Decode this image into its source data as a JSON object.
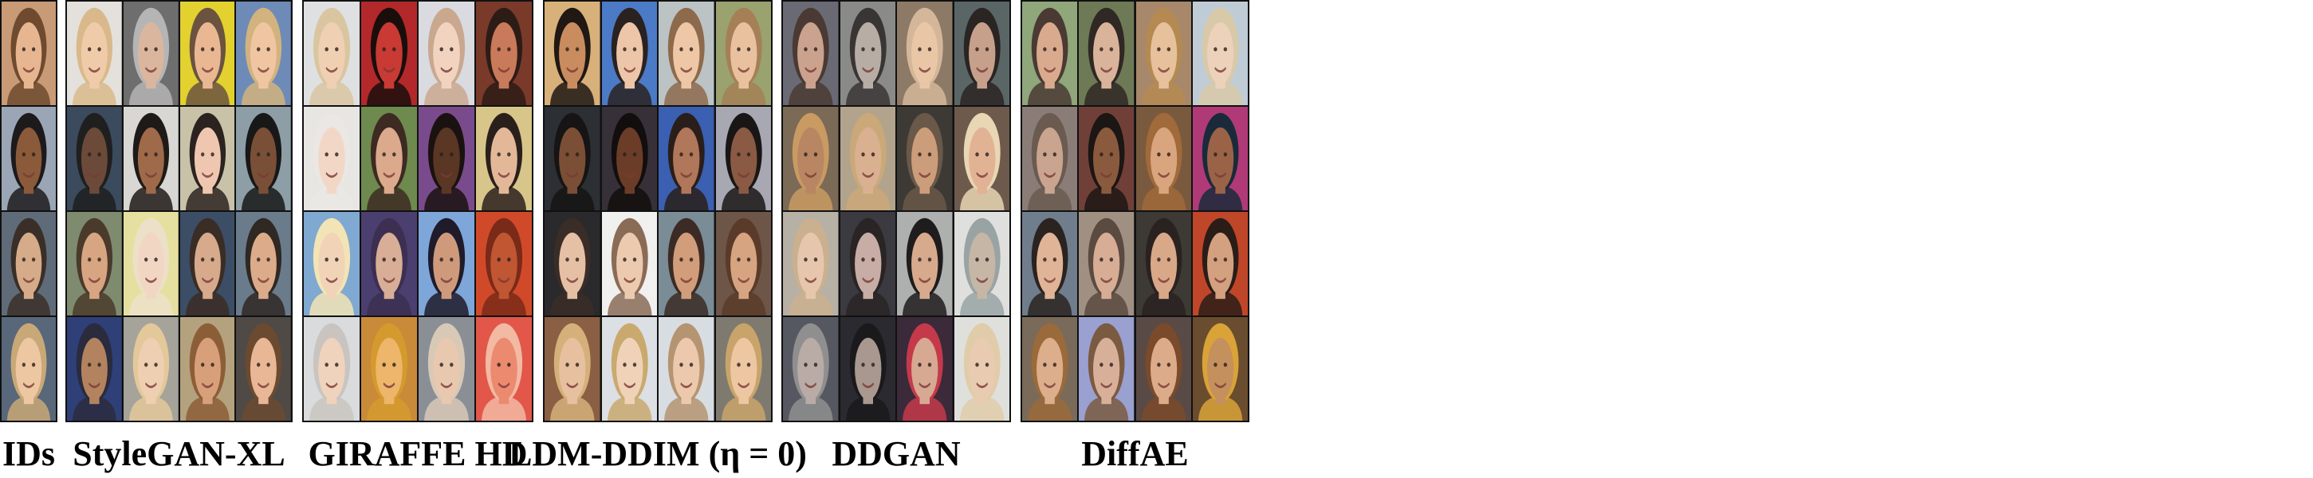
{
  "figure": {
    "panels": [
      {
        "id": "ids",
        "label": "IDs",
        "cols": 1,
        "rows": 4,
        "tones": [
          [
            "#e7b690",
            "#6f4a2e",
            "#c99a76"
          ],
          [
            "#8a5a3b",
            "#1d1a1c",
            "#9aa6b5"
          ],
          [
            "#d6ab8a",
            "#3a2f28",
            "#5f6b78"
          ],
          [
            "#edc7a2",
            "#c9a877",
            "#586779"
          ]
        ]
      },
      {
        "id": "stylegan-xl",
        "label": "StyleGAN-XL",
        "cols": 4,
        "rows": 4,
        "tones": [
          [
            "#f0cba9",
            "#d9b98b",
            "#e4e1dc"
          ],
          [
            "#dab69f",
            "#b5b5b5",
            "#6e6e6e"
          ],
          [
            "#e9b893",
            "#6b5340",
            "#e2d12f"
          ],
          [
            "#f0c5a2",
            "#d2b37e",
            "#6e8bb7"
          ],
          [
            "#6b4a39",
            "#1f1f1f",
            "#3b4a5c"
          ],
          [
            "#9f6a4a",
            "#1e1a18",
            "#d9d7d3"
          ],
          [
            "#efc7b0",
            "#2b2320",
            "#c8c2a8"
          ],
          [
            "#7a4f37",
            "#181818",
            "#8d9ea6"
          ],
          [
            "#d8a582",
            "#4a3a2c",
            "#7f8b6e"
          ],
          [
            "#f2d6c4",
            "#ece0c8",
            "#e6e0a0"
          ],
          [
            "#d6aa8b",
            "#3a2d25",
            "#3c4e66"
          ],
          [
            "#dcab8a",
            "#2f2823",
            "#6a7c8c"
          ],
          [
            "#b3835f",
            "#2a2b3d",
            "#2f3f78"
          ],
          [
            "#efcfb2",
            "#e3c89a",
            "#a5a39a"
          ],
          [
            "#d8a07a",
            "#8c5e38",
            "#b4a27e"
          ],
          [
            "#e9b795",
            "#6b4a30",
            "#4f4a45"
          ]
        ]
      },
      {
        "id": "giraffe-hd",
        "label": "GIRAFFE HD",
        "cols": 4,
        "rows": 4,
        "tones": [
          [
            "#efd0b3",
            "#d9c6a1",
            "#dfe0e2"
          ],
          [
            "#c83a33",
            "#1a0e0c",
            "#b3282a"
          ],
          [
            "#f1d3c0",
            "#c9a88f",
            "#d9dbe0"
          ],
          [
            "#c87a5a",
            "#2d1c16",
            "#7a3a2a"
          ],
          [
            "#f2d7c7",
            "#eae7e4",
            "#e8e6e3"
          ],
          [
            "#dba98c",
            "#3d2a22",
            "#6e8a4e"
          ],
          [
            "#5a3624",
            "#1a1210",
            "#7a4b8c"
          ],
          [
            "#e3b898",
            "#2a201b",
            "#d7c58a"
          ],
          [
            "#f1d4b8",
            "#f3e4b5",
            "#7fa9d0"
          ],
          [
            "#d8ae96",
            "#3c2f52",
            "#4a3f6e"
          ],
          [
            "#cf9a7c",
            "#1f1b2a",
            "#7fa6d8"
          ],
          [
            "#c05632",
            "#7a2a18",
            "#d04a2a"
          ],
          [
            "#f0d3bd",
            "#c9c4bf",
            "#d9dbdd"
          ],
          [
            "#edb66a",
            "#d59a2e",
            "#c98a3a"
          ],
          [
            "#e9c8b0",
            "#d8c9b7",
            "#8a8f96"
          ],
          [
            "#ec8a70",
            "#f2b9a3",
            "#e2574a"
          ]
        ]
      },
      {
        "id": "ldm-ddim",
        "label": "LDM-DDIM (η = 0)",
        "cols": 4,
        "rows": 4,
        "tones": [
          [
            "#c98c5f",
            "#1f1813",
            "#d8b07a"
          ],
          [
            "#edc6a9",
            "#2a2220",
            "#4b7ac6"
          ],
          [
            "#eec7a6",
            "#8e6a4c",
            "#bcc3c5"
          ],
          [
            "#e9c19f",
            "#a58057",
            "#9aa26f"
          ],
          [
            "#7a4f36",
            "#161414",
            "#2c2f33"
          ],
          [
            "#6b3d28",
            "#120e0d",
            "#383038"
          ],
          [
            "#b0775a",
            "#2a1e1a",
            "#3b5fb1"
          ],
          [
            "#8a5a44",
            "#1a1616",
            "#a7a8b2"
          ],
          [
            "#e6c0a5",
            "#3a2d27",
            "#2a2a2c"
          ],
          [
            "#eccab0",
            "#8a6b56",
            "#f0f0ee"
          ],
          [
            "#d19d7b",
            "#3b2b24",
            "#7a8c96"
          ],
          [
            "#d7a482",
            "#5a3b2a",
            "#6d5648"
          ],
          [
            "#e7c09f",
            "#d5b07a",
            "#8a5f43"
          ],
          [
            "#f0d2b9",
            "#c9a96e",
            "#dcdfe3"
          ],
          [
            "#ecc8ac",
            "#b59471",
            "#d8dde2"
          ],
          [
            "#edc6a2",
            "#c9a46a",
            "#7f7a70"
          ]
        ]
      },
      {
        "id": "ddgan",
        "label": "DDGAN",
        "cols": 4,
        "rows": 4,
        "tones": [
          [
            "#caa28e",
            "#4a3a33",
            "#6a6a75"
          ],
          [
            "#b7ada5",
            "#3a3535",
            "#8a8a88"
          ],
          [
            "#e9c7a6",
            "#d4b79a",
            "#8d7a66"
          ],
          [
            "#c7a08c",
            "#2a2523",
            "#5a6566"
          ],
          [
            "#b98663",
            "#c99a62",
            "#7a6a56"
          ],
          [
            "#d9b190",
            "#cba879",
            "#b2a48c"
          ],
          [
            "#cc9d7a",
            "#6a5848",
            "#3d3a35"
          ],
          [
            "#e2b295",
            "#e8d6b4",
            "#6d5a4c"
          ],
          [
            "#e6c7ad",
            "#cbb08f",
            "#b7b0a5"
          ],
          [
            "#c7ada5",
            "#2a2424",
            "#3a3a40"
          ],
          [
            "#d7aa8e",
            "#1e1c1c",
            "#aeb0b0"
          ],
          [
            "#c6b6a6",
            "#9aa3a4",
            "#dfe0dd"
          ],
          [
            "#b9aba6",
            "#8f8f8f",
            "#555860"
          ],
          [
            "#a89890",
            "#1a1a1c",
            "#2a2a30"
          ],
          [
            "#d7a892",
            "#c43a4a",
            "#3a2a3a"
          ],
          [
            "#e9cbb2",
            "#e0cca8",
            "#dfdfdc"
          ]
        ]
      },
      {
        "id": "diffae",
        "label": "DiffAE",
        "cols": 4,
        "rows": 4,
        "tones": [
          [
            "#d9aa8e",
            "#4a3a33",
            "#8fa77a"
          ],
          [
            "#d9b39a",
            "#2f2824",
            "#6d7a55"
          ],
          [
            "#e6c19b",
            "#b58a52",
            "#a7886a"
          ],
          [
            "#ecd1bb",
            "#d8c9a8",
            "#c0ccd5"
          ],
          [
            "#c9a48f",
            "#6a5a50",
            "#8a7d78"
          ],
          [
            "#8a5a3e",
            "#1c1614",
            "#704038"
          ],
          [
            "#d9a57e",
            "#a06a3a",
            "#7a5a3e"
          ],
          [
            "#9a6348",
            "#1a2a3a",
            "#b03a78"
          ],
          [
            "#e0b496",
            "#2a2320",
            "#6f7d8c"
          ],
          [
            "#d7ad95",
            "#5a4a40",
            "#a09082"
          ],
          [
            "#d9a888",
            "#2a2220",
            "#3d3a35"
          ],
          [
            "#d3a080",
            "#2a1d18",
            "#c0462a"
          ],
          [
            "#dcae8c",
            "#9a6a3a",
            "#7a6a5a"
          ],
          [
            "#d8b09a",
            "#7a5a40",
            "#9aa0d0"
          ],
          [
            "#dcab8a",
            "#7a4a2a",
            "#5a4a45"
          ],
          [
            "#c4905e",
            "#d9a338",
            "#6a4c2e"
          ]
        ]
      }
    ]
  }
}
